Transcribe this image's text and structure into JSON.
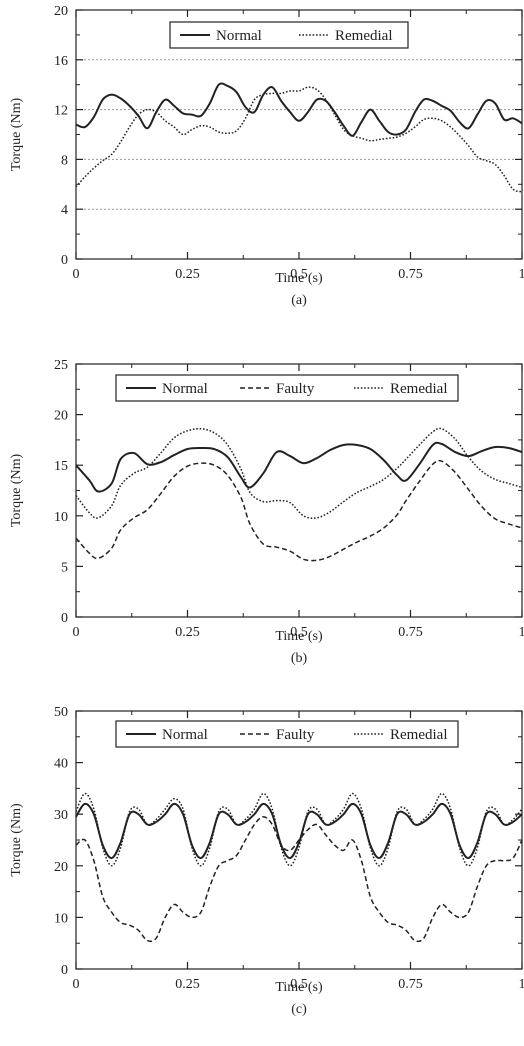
{
  "chart_data": [
    {
      "type": "line",
      "panel_label": "(a)",
      "xlabel": "Time (s)",
      "ylabel": "Torque (Nm)",
      "xlim": [
        0,
        1
      ],
      "ylim": [
        0,
        20
      ],
      "xticks": [
        0,
        0.25,
        0.5,
        0.75,
        1
      ],
      "xtick_labels": [
        "0",
        "0.25",
        "0.5",
        "0.75",
        "1"
      ],
      "yticks": [
        0,
        4,
        8,
        12,
        16,
        20
      ],
      "ytick_labels": [
        "0",
        "4",
        "8",
        "12",
        "16",
        "20"
      ],
      "grid": "horizontal dotted gray",
      "legend_position": "top-center",
      "series": [
        {
          "name": "Normal",
          "style": "solid",
          "x": [
            0,
            0.02,
            0.04,
            0.06,
            0.08,
            0.1,
            0.12,
            0.14,
            0.16,
            0.18,
            0.2,
            0.22,
            0.24,
            0.26,
            0.28,
            0.3,
            0.32,
            0.34,
            0.36,
            0.38,
            0.4,
            0.42,
            0.44,
            0.46,
            0.48,
            0.5,
            0.52,
            0.54,
            0.56,
            0.58,
            0.6,
            0.62,
            0.64,
            0.66,
            0.68,
            0.7,
            0.72,
            0.74,
            0.76,
            0.78,
            0.8,
            0.82,
            0.84,
            0.86,
            0.88,
            0.9,
            0.92,
            0.94,
            0.96,
            0.98,
            1.0
          ],
          "values": [
            10.8,
            10.6,
            11.4,
            12.8,
            13.2,
            12.9,
            12.3,
            11.5,
            10.5,
            11.8,
            12.8,
            12.3,
            11.7,
            11.6,
            11.5,
            12.5,
            14.0,
            13.9,
            13.4,
            12.2,
            11.8,
            13.2,
            13.8,
            12.7,
            11.8,
            11.1,
            11.8,
            12.8,
            12.7,
            11.8,
            10.7,
            9.9,
            11.0,
            12.0,
            11.1,
            10.2,
            10.0,
            10.4,
            11.8,
            12.8,
            12.7,
            12.3,
            11.9,
            11.0,
            10.5,
            11.6,
            12.7,
            12.5,
            11.2,
            11.3,
            10.9
          ]
        },
        {
          "name": "Remedial",
          "style": "dotted",
          "x": [
            0,
            0.02,
            0.04,
            0.06,
            0.08,
            0.1,
            0.12,
            0.14,
            0.16,
            0.18,
            0.2,
            0.22,
            0.24,
            0.26,
            0.28,
            0.3,
            0.32,
            0.34,
            0.36,
            0.38,
            0.4,
            0.42,
            0.44,
            0.46,
            0.48,
            0.5,
            0.52,
            0.54,
            0.56,
            0.58,
            0.6,
            0.62,
            0.64,
            0.66,
            0.68,
            0.7,
            0.72,
            0.74,
            0.76,
            0.78,
            0.8,
            0.82,
            0.84,
            0.86,
            0.88,
            0.9,
            0.92,
            0.94,
            0.96,
            0.98,
            1.0
          ],
          "values": [
            5.8,
            6.6,
            7.3,
            7.9,
            8.4,
            9.4,
            10.6,
            11.6,
            12.0,
            11.8,
            11.1,
            10.6,
            10.0,
            10.4,
            10.7,
            10.6,
            10.2,
            10.1,
            10.3,
            11.3,
            12.8,
            13.2,
            13.3,
            13.3,
            13.5,
            13.5,
            13.8,
            13.6,
            12.8,
            11.6,
            10.4,
            9.9,
            9.7,
            9.5,
            9.6,
            9.7,
            9.8,
            10.1,
            10.6,
            11.2,
            11.3,
            11.1,
            10.6,
            9.9,
            9.1,
            8.2,
            7.9,
            7.6,
            6.7,
            5.6,
            5.4
          ]
        }
      ]
    },
    {
      "type": "line",
      "panel_label": "(b)",
      "xlabel": "Time (s)",
      "ylabel": "Torque (Nm)",
      "xlim": [
        0,
        1
      ],
      "ylim": [
        0,
        25
      ],
      "xticks": [
        0,
        0.25,
        0.5,
        0.75,
        1
      ],
      "xtick_labels": [
        "0",
        "0.25",
        "0.5",
        "0.75",
        "1"
      ],
      "yticks": [
        0,
        5,
        10,
        15,
        20,
        25
      ],
      "ytick_labels": [
        "0",
        "5",
        "10",
        "15",
        "20",
        "25"
      ],
      "grid": "none",
      "legend_position": "top-center",
      "series": [
        {
          "name": "Normal",
          "style": "solid",
          "x": [
            0,
            0.03,
            0.05,
            0.08,
            0.1,
            0.13,
            0.16,
            0.19,
            0.22,
            0.25,
            0.28,
            0.31,
            0.34,
            0.37,
            0.39,
            0.42,
            0.45,
            0.48,
            0.51,
            0.54,
            0.57,
            0.6,
            0.63,
            0.66,
            0.69,
            0.72,
            0.74,
            0.77,
            0.8,
            0.82,
            0.85,
            0.88,
            0.91,
            0.94,
            0.97,
            1.0
          ],
          "values": [
            15.0,
            13.5,
            12.4,
            13.2,
            15.6,
            16.2,
            15.1,
            15.3,
            16.0,
            16.6,
            16.7,
            16.6,
            15.8,
            13.8,
            12.8,
            14.2,
            16.3,
            15.9,
            15.2,
            15.7,
            16.5,
            17.0,
            17.0,
            16.6,
            15.5,
            14.0,
            13.5,
            15.1,
            17.0,
            17.1,
            16.3,
            15.9,
            16.4,
            16.8,
            16.7,
            16.3
          ]
        },
        {
          "name": "Faulty",
          "style": "dashed",
          "x": [
            0,
            0.03,
            0.05,
            0.08,
            0.1,
            0.13,
            0.16,
            0.19,
            0.22,
            0.25,
            0.28,
            0.31,
            0.34,
            0.37,
            0.39,
            0.42,
            0.45,
            0.48,
            0.51,
            0.54,
            0.57,
            0.6,
            0.63,
            0.66,
            0.69,
            0.72,
            0.74,
            0.77,
            0.8,
            0.82,
            0.85,
            0.88,
            0.91,
            0.94,
            0.97,
            1.0
          ],
          "values": [
            7.8,
            6.3,
            5.8,
            6.8,
            8.6,
            9.8,
            10.6,
            12.2,
            13.9,
            14.9,
            15.2,
            15.0,
            14.0,
            11.8,
            9.2,
            7.2,
            6.9,
            6.5,
            5.7,
            5.6,
            6.0,
            6.7,
            7.4,
            8.0,
            8.8,
            10.1,
            11.5,
            13.4,
            15.1,
            15.4,
            14.3,
            12.6,
            10.9,
            9.7,
            9.2,
            8.8
          ]
        },
        {
          "name": "Remedial",
          "style": "dotted",
          "x": [
            0,
            0.03,
            0.05,
            0.08,
            0.1,
            0.13,
            0.16,
            0.19,
            0.22,
            0.25,
            0.28,
            0.31,
            0.34,
            0.37,
            0.39,
            0.42,
            0.45,
            0.48,
            0.51,
            0.54,
            0.57,
            0.6,
            0.63,
            0.66,
            0.69,
            0.72,
            0.74,
            0.77,
            0.8,
            0.82,
            0.85,
            0.88,
            0.91,
            0.94,
            0.97,
            1.0
          ],
          "values": [
            12.0,
            10.3,
            9.8,
            11.0,
            13.0,
            14.2,
            14.8,
            16.2,
            17.7,
            18.4,
            18.6,
            18.2,
            17.0,
            14.6,
            12.3,
            11.4,
            11.5,
            11.3,
            10.0,
            9.8,
            10.4,
            11.4,
            12.3,
            12.9,
            13.6,
            14.7,
            15.6,
            17.0,
            18.3,
            18.6,
            17.6,
            15.8,
            14.4,
            13.6,
            13.2,
            12.8
          ]
        }
      ]
    },
    {
      "type": "line",
      "panel_label": "(c)",
      "xlabel": "Time (s)",
      "ylabel": "Torque (Nm)",
      "xlim": [
        0,
        1
      ],
      "ylim": [
        0,
        50
      ],
      "xticks": [
        0,
        0.25,
        0.5,
        0.75,
        1
      ],
      "xtick_labels": [
        "0",
        "0.25",
        "0.5",
        "0.75",
        "1"
      ],
      "yticks": [
        0,
        10,
        20,
        30,
        40,
        50
      ],
      "ytick_labels": [
        "0",
        "10",
        "20",
        "30",
        "40",
        "50"
      ],
      "grid": "none",
      "legend_position": "top-center",
      "series": [
        {
          "name": "Normal",
          "style": "solid",
          "x": [
            0,
            0.02,
            0.04,
            0.06,
            0.08,
            0.1,
            0.12,
            0.14,
            0.16,
            0.18,
            0.2,
            0.22,
            0.24,
            0.26,
            0.28,
            0.3,
            0.32,
            0.34,
            0.36,
            0.38,
            0.4,
            0.42,
            0.44,
            0.46,
            0.48,
            0.5,
            0.52,
            0.54,
            0.56,
            0.58,
            0.6,
            0.62,
            0.64,
            0.66,
            0.68,
            0.7,
            0.72,
            0.74,
            0.76,
            0.78,
            0.8,
            0.82,
            0.84,
            0.86,
            0.88,
            0.9,
            0.92,
            0.94,
            0.96,
            0.98,
            1.0
          ],
          "values": [
            29.5,
            32.0,
            30.0,
            24.0,
            21.5,
            24.5,
            30.0,
            30.0,
            28.0,
            28.5,
            30.0,
            32.0,
            30.0,
            24.0,
            21.5,
            24.5,
            30.0,
            30.0,
            28.0,
            28.5,
            30.0,
            32.0,
            30.0,
            24.0,
            21.5,
            24.5,
            30.0,
            30.0,
            28.0,
            28.5,
            30.0,
            32.0,
            30.0,
            24.0,
            21.5,
            24.5,
            30.0,
            30.0,
            28.0,
            28.5,
            30.0,
            32.0,
            30.0,
            24.0,
            21.5,
            24.5,
            30.0,
            30.0,
            28.0,
            28.5,
            30.0
          ]
        },
        {
          "name": "Faulty",
          "style": "dashed",
          "x": [
            0,
            0.02,
            0.04,
            0.06,
            0.08,
            0.1,
            0.12,
            0.14,
            0.16,
            0.18,
            0.2,
            0.22,
            0.24,
            0.26,
            0.28,
            0.3,
            0.32,
            0.34,
            0.36,
            0.38,
            0.4,
            0.42,
            0.44,
            0.46,
            0.48,
            0.5,
            0.52,
            0.54,
            0.56,
            0.58,
            0.6,
            0.62,
            0.64,
            0.66,
            0.68,
            0.7,
            0.72,
            0.74,
            0.76,
            0.78,
            0.8,
            0.82,
            0.84,
            0.86,
            0.88,
            0.9,
            0.92,
            0.94,
            0.96,
            0.98,
            1.0
          ],
          "values": [
            24.0,
            25.0,
            21.0,
            14.0,
            11.0,
            9.0,
            8.5,
            7.5,
            5.5,
            6.0,
            10.0,
            12.5,
            11.0,
            10.0,
            11.0,
            16.0,
            20.0,
            21.0,
            22.0,
            25.0,
            28.0,
            29.5,
            28.0,
            24.0,
            23.0,
            25.0,
            27.0,
            28.0,
            26.0,
            24.0,
            23.0,
            25.0,
            21.0,
            14.0,
            11.0,
            9.0,
            8.5,
            7.5,
            5.5,
            6.0,
            10.0,
            12.5,
            11.0,
            10.0,
            11.0,
            16.0,
            20.0,
            21.0,
            21.0,
            21.5,
            25.0
          ]
        },
        {
          "name": "Remedial",
          "style": "dotted",
          "x": [
            0,
            0.02,
            0.04,
            0.06,
            0.08,
            0.1,
            0.12,
            0.14,
            0.16,
            0.18,
            0.2,
            0.22,
            0.24,
            0.26,
            0.28,
            0.3,
            0.32,
            0.34,
            0.36,
            0.38,
            0.4,
            0.42,
            0.44,
            0.46,
            0.48,
            0.5,
            0.52,
            0.54,
            0.56,
            0.58,
            0.6,
            0.62,
            0.64,
            0.66,
            0.68,
            0.7,
            0.72,
            0.74,
            0.76,
            0.78,
            0.8,
            0.82,
            0.84,
            0.86,
            0.88,
            0.9,
            0.92,
            0.94,
            0.96,
            0.98,
            1.0
          ],
          "values": [
            30.5,
            34.0,
            31.0,
            23.5,
            20.0,
            23.5,
            30.5,
            31.0,
            28.0,
            29.0,
            31.0,
            33.0,
            31.0,
            23.5,
            20.0,
            23.5,
            30.5,
            31.0,
            28.0,
            29.0,
            31.0,
            34.0,
            31.0,
            23.5,
            20.0,
            23.5,
            30.5,
            31.0,
            28.0,
            29.0,
            31.0,
            34.0,
            31.0,
            23.5,
            20.0,
            23.5,
            30.5,
            31.0,
            28.0,
            29.0,
            31.0,
            34.0,
            31.0,
            23.5,
            20.0,
            23.5,
            30.5,
            31.0,
            28.0,
            29.0,
            31.0
          ]
        }
      ]
    }
  ]
}
